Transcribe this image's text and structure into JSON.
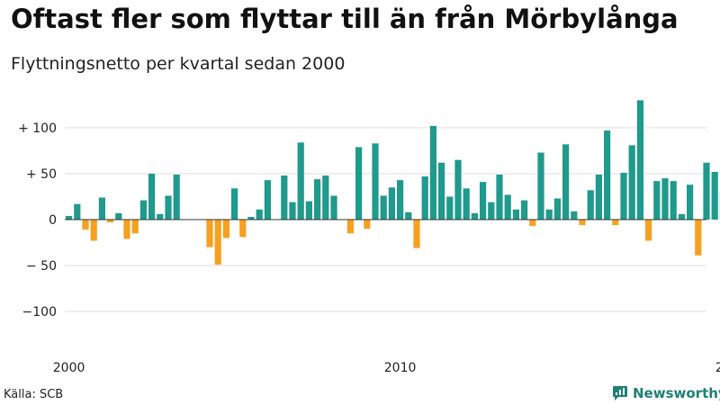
{
  "title": "Oftast fler som flyttar till än från Mörbylånga",
  "subtitle": "Flyttningsnetto per kvartal sedan 2000",
  "source": "Källa: SCB",
  "brand": {
    "name": "Newsworthy",
    "icon": "newsworthy-logo-icon"
  },
  "colors": {
    "positive": "#1f9a8c",
    "negative": "#f5a020",
    "grid": "#dddddd",
    "axis": "#333333"
  },
  "chart_data": {
    "type": "bar",
    "title": "Oftast fler som flyttar till än från Mörbylånga",
    "subtitle": "Flyttningsnetto per kvartal sedan 2000",
    "xlabel": "",
    "ylabel": "",
    "ylim": [
      -120,
      130
    ],
    "yticks": [
      {
        "value": 100,
        "label": "+ 100"
      },
      {
        "value": 50,
        "label": "+  50"
      },
      {
        "value": 0,
        "label": "0"
      },
      {
        "value": -50,
        "label": "− 50"
      },
      {
        "value": -100,
        "label": "−100"
      }
    ],
    "xticks": [
      "2000",
      "2010",
      "2020"
    ],
    "grid": true,
    "legend": "none",
    "start": "2000 Q1",
    "values": [
      4,
      17,
      -11,
      -23,
      24,
      -3,
      7,
      -21,
      -15,
      21,
      50,
      6,
      26,
      49,
      0,
      0,
      0,
      -30,
      -49,
      -20,
      34,
      -19,
      3,
      11,
      43,
      0,
      48,
      19,
      84,
      20,
      44,
      48,
      26,
      0,
      -15,
      79,
      -10,
      83,
      26,
      35,
      43,
      8,
      -31,
      47,
      102,
      62,
      25,
      65,
      34,
      7,
      41,
      19,
      49,
      27,
      11,
      21,
      -7,
      73,
      11,
      23,
      82,
      9,
      -6,
      32,
      49,
      97,
      -6,
      51,
      81,
      130,
      -23,
      42,
      45,
      42,
      6,
      38,
      -39,
      62,
      52,
      29,
      64,
      54,
      39,
      61,
      85,
      77,
      40,
      80,
      23,
      98,
      98,
      85,
      60,
      48,
      2,
      65,
      86,
      48,
      45,
      40,
      23,
      19,
      31
    ]
  }
}
